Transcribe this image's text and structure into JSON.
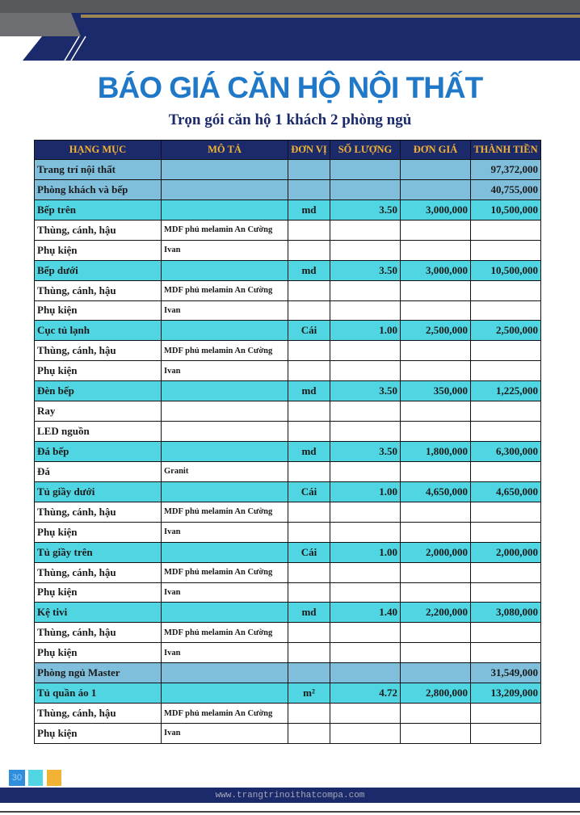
{
  "header": {
    "title": "BÁO GIÁ CĂN HỘ NỘI THẤT",
    "subtitle": "Trọn gói căn hộ 1 khách 2 phòng ngủ"
  },
  "table": {
    "header_color": "#1b2a6b",
    "header_text_color": "#f2b233",
    "columns": [
      "HẠNG MỤC",
      "MÔ TẢ",
      "ĐƠN VỊ",
      "SỐ LƯỢNG",
      "ĐƠN GIÁ",
      "THÀNH TIỀN"
    ],
    "rows": [
      {
        "color": "#80bfdc",
        "cells": [
          "Trang trí nội thất",
          null,
          null,
          null,
          null,
          "97,372,000"
        ]
      },
      {
        "color": "#80bfdc",
        "cells": [
          "Phòng khách và bếp",
          null,
          null,
          null,
          null,
          "40,755,000"
        ]
      },
      {
        "color": "#4fd6e2",
        "cells": [
          "Bếp trên",
          null,
          "md",
          "3.50",
          "3,000,000",
          "10,500,000"
        ]
      },
      {
        "color": "#ffffff",
        "cells": [
          "Thùng, cánh, hậu",
          "MDF phủ melamin An Cường",
          null,
          null,
          null,
          null
        ]
      },
      {
        "color": "#ffffff",
        "cells": [
          "Phụ kiện",
          "Ivan",
          null,
          null,
          null,
          null
        ]
      },
      {
        "color": "#4fd6e2",
        "cells": [
          "Bếp dưới",
          null,
          "md",
          "3.50",
          "3,000,000",
          "10,500,000"
        ]
      },
      {
        "color": "#ffffff",
        "cells": [
          "Thùng, cánh, hậu",
          "MDF phủ melamin An Cường",
          null,
          null,
          null,
          null
        ]
      },
      {
        "color": "#ffffff",
        "cells": [
          "Phụ kiện",
          "Ivan",
          null,
          null,
          null,
          null
        ]
      },
      {
        "color": "#4fd6e2",
        "cells": [
          "Cục tủ lạnh",
          null,
          "Cái",
          "1.00",
          "2,500,000",
          "2,500,000"
        ]
      },
      {
        "color": "#ffffff",
        "cells": [
          "Thùng, cánh, hậu",
          "MDF phủ melamin An Cường",
          null,
          null,
          null,
          null
        ]
      },
      {
        "color": "#ffffff",
        "cells": [
          "Phụ kiện",
          "Ivan",
          null,
          null,
          null,
          null
        ]
      },
      {
        "color": "#4fd6e2",
        "cells": [
          "Đèn bếp",
          null,
          "md",
          "3.50",
          "350,000",
          "1,225,000"
        ]
      },
      {
        "color": "#ffffff",
        "cells": [
          "Ray",
          null,
          null,
          null,
          null,
          null
        ]
      },
      {
        "color": "#ffffff",
        "cells": [
          "LED nguồn",
          null,
          null,
          null,
          null,
          null
        ]
      },
      {
        "color": "#4fd6e2",
        "cells": [
          "Đá bếp",
          null,
          "md",
          "3.50",
          "1,800,000",
          "6,300,000"
        ]
      },
      {
        "color": "#ffffff",
        "cells": [
          "Đá",
          "Granit",
          null,
          null,
          null,
          null
        ]
      },
      {
        "color": "#4fd6e2",
        "cells": [
          "Tủ giầy dưới",
          null,
          "Cái",
          "1.00",
          "4,650,000",
          "4,650,000"
        ]
      },
      {
        "color": "#ffffff",
        "cells": [
          "Thùng, cánh, hậu",
          "MDF phủ melamin An Cường",
          null,
          null,
          null,
          null
        ]
      },
      {
        "color": "#ffffff",
        "cells": [
          "Phụ kiện",
          "Ivan",
          null,
          null,
          null,
          null
        ]
      },
      {
        "color": "#4fd6e2",
        "cells": [
          "Tủ giầy trên",
          null,
          "Cái",
          "1.00",
          "2,000,000",
          "2,000,000"
        ]
      },
      {
        "color": "#ffffff",
        "cells": [
          "Thùng, cánh, hậu",
          "MDF phủ melamin An Cường",
          null,
          null,
          null,
          null
        ]
      },
      {
        "color": "#ffffff",
        "cells": [
          "Phụ kiện",
          "Ivan",
          null,
          null,
          null,
          null
        ]
      },
      {
        "color": "#4fd6e2",
        "cells": [
          "Kệ tivi",
          null,
          "md",
          "1.40",
          "2,200,000",
          "3,080,000"
        ]
      },
      {
        "color": "#ffffff",
        "cells": [
          "Thùng, cánh, hậu",
          "MDF phủ melamin An Cường",
          null,
          null,
          null,
          null
        ]
      },
      {
        "color": "#ffffff",
        "cells": [
          "Phụ kiện",
          "Ivan",
          null,
          null,
          null,
          null
        ]
      },
      {
        "color": "#80bfdc",
        "cells": [
          "Phòng ngủ Master",
          null,
          null,
          null,
          null,
          "31,549,000"
        ]
      },
      {
        "color": "#4fd6e2",
        "cells": [
          "Tủ quần áo 1",
          null,
          "m²",
          "4.72",
          "2,800,000",
          "13,209,000"
        ]
      },
      {
        "color": "#ffffff",
        "cells": [
          "Thùng, cánh, hậu",
          "MDF phủ melamin An Cường",
          null,
          null,
          null,
          null
        ]
      },
      {
        "color": "#ffffff",
        "cells": [
          "Phụ kiện",
          "Ivan",
          null,
          null,
          null,
          null
        ]
      }
    ]
  },
  "footer": {
    "page": "30",
    "url": "www.trangtrinoithatcompa.com"
  }
}
